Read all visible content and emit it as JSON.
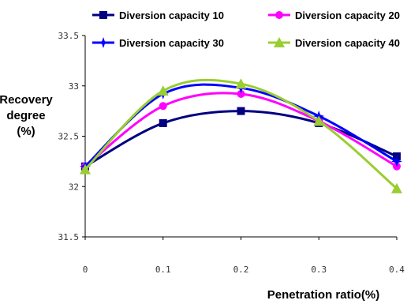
{
  "chart_data": {
    "type": "line",
    "title": "",
    "xlabel": "Penetration ratio(%)",
    "ylabel": [
      "Recovery",
      "degree",
      "(%)"
    ],
    "x": [
      0,
      0.1,
      0.2,
      0.3,
      0.4
    ],
    "x_tick_labels": [
      "0",
      "0.1",
      "0.2",
      "0.3",
      "0.4"
    ],
    "y_tick_labels": [
      "31.5",
      "32",
      "32.5",
      "33",
      "33.5"
    ],
    "xlim": [
      0,
      0.4
    ],
    "ylim": [
      31.5,
      33.5
    ],
    "grid": false,
    "legend_position": "top",
    "series": [
      {
        "name": "Diversion capacity  10",
        "color": "#000080",
        "marker": "square",
        "values": [
          32.2,
          32.63,
          32.75,
          32.63,
          32.3
        ]
      },
      {
        "name": "Diversion capacity  20",
        "color": "#ff00ff",
        "marker": "circle",
        "values": [
          32.2,
          32.8,
          32.92,
          32.65,
          32.2
        ]
      },
      {
        "name": "Diversion capacity  30",
        "color": "#0000ff",
        "marker": "star",
        "values": [
          32.2,
          32.92,
          32.98,
          32.7,
          32.25
        ]
      },
      {
        "name": "Diversion capacity  40",
        "color": "#9acd32",
        "marker": "triangle",
        "values": [
          32.17,
          32.95,
          33.02,
          32.65,
          31.98
        ]
      }
    ]
  }
}
